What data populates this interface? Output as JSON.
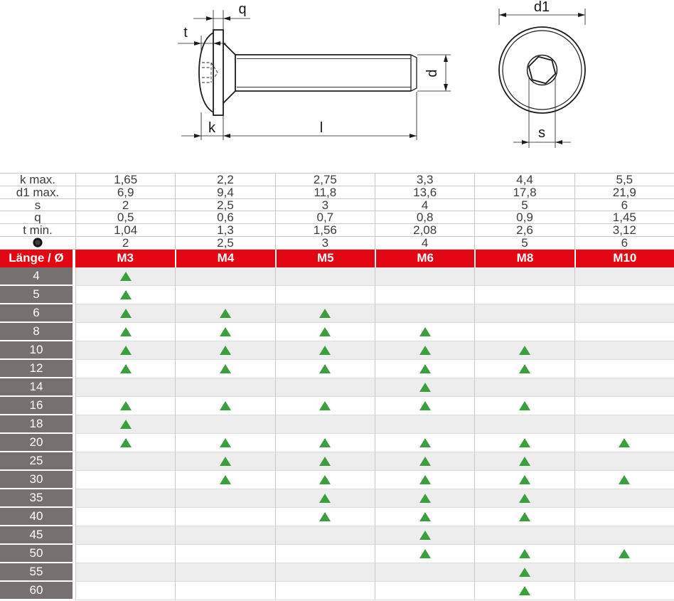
{
  "drawing": {
    "labels": {
      "q": "q",
      "t": "t",
      "k": "k",
      "l": "l",
      "d": "d",
      "d1": "d1",
      "s": "s"
    }
  },
  "spec_table": {
    "columns": [
      "M3",
      "M4",
      "M5",
      "M6",
      "M8",
      "M10"
    ],
    "rows": [
      {
        "label": "k max.",
        "values": [
          "1,65",
          "2,2",
          "2,75",
          "3,3",
          "4,4",
          "5,5"
        ]
      },
      {
        "label": "d1 max.",
        "values": [
          "6,9",
          "9,4",
          "11,8",
          "13,6",
          "17,8",
          "21,9"
        ]
      },
      {
        "label": "s",
        "values": [
          "2",
          "2,5",
          "3",
          "4",
          "5",
          "6"
        ]
      },
      {
        "label": "q",
        "values": [
          "0,5",
          "0,6",
          "0,7",
          "0,8",
          "0,9",
          "1,45"
        ]
      },
      {
        "label": "t min.",
        "values": [
          "1,04",
          "1,3",
          "1,56",
          "2,08",
          "2,6",
          "3,12"
        ]
      },
      {
        "label": "",
        "icon": "hex-socket-icon",
        "values": [
          "2",
          "2,5",
          "3",
          "4",
          "5",
          "6"
        ]
      }
    ]
  },
  "matrix": {
    "header_label": "Länge / Ø",
    "columns": [
      "M3",
      "M4",
      "M5",
      "M6",
      "M8",
      "M10"
    ],
    "rows": [
      {
        "length": "4",
        "available": [
          1,
          0,
          0,
          0,
          0,
          0
        ]
      },
      {
        "length": "5",
        "available": [
          1,
          0,
          0,
          0,
          0,
          0
        ]
      },
      {
        "length": "6",
        "available": [
          1,
          1,
          1,
          0,
          0,
          0
        ]
      },
      {
        "length": "8",
        "available": [
          1,
          1,
          1,
          1,
          0,
          0
        ]
      },
      {
        "length": "10",
        "available": [
          1,
          1,
          1,
          1,
          1,
          0
        ]
      },
      {
        "length": "12",
        "available": [
          1,
          1,
          1,
          1,
          1,
          0
        ]
      },
      {
        "length": "14",
        "available": [
          0,
          0,
          0,
          1,
          0,
          0
        ]
      },
      {
        "length": "16",
        "available": [
          1,
          1,
          1,
          1,
          1,
          0
        ]
      },
      {
        "length": "18",
        "available": [
          1,
          0,
          0,
          0,
          0,
          0
        ]
      },
      {
        "length": "20",
        "available": [
          1,
          1,
          1,
          1,
          1,
          1
        ]
      },
      {
        "length": "25",
        "available": [
          0,
          1,
          1,
          1,
          1,
          0
        ]
      },
      {
        "length": "30",
        "available": [
          0,
          1,
          1,
          1,
          1,
          1
        ]
      },
      {
        "length": "35",
        "available": [
          0,
          0,
          1,
          1,
          1,
          0
        ]
      },
      {
        "length": "40",
        "available": [
          0,
          0,
          1,
          1,
          1,
          0
        ]
      },
      {
        "length": "45",
        "available": [
          0,
          0,
          0,
          1,
          0,
          0
        ]
      },
      {
        "length": "50",
        "available": [
          0,
          0,
          0,
          1,
          1,
          1
        ]
      },
      {
        "length": "55",
        "available": [
          0,
          0,
          0,
          0,
          1,
          0
        ]
      },
      {
        "length": "60",
        "available": [
          0,
          0,
          0,
          0,
          1,
          0
        ]
      }
    ]
  },
  "colors": {
    "red": "#e30613",
    "gray": "#767070",
    "stripe": "#ededed",
    "green": "#3b9e3f",
    "line": "#c9c9c9",
    "text": "#3c3c3c"
  }
}
